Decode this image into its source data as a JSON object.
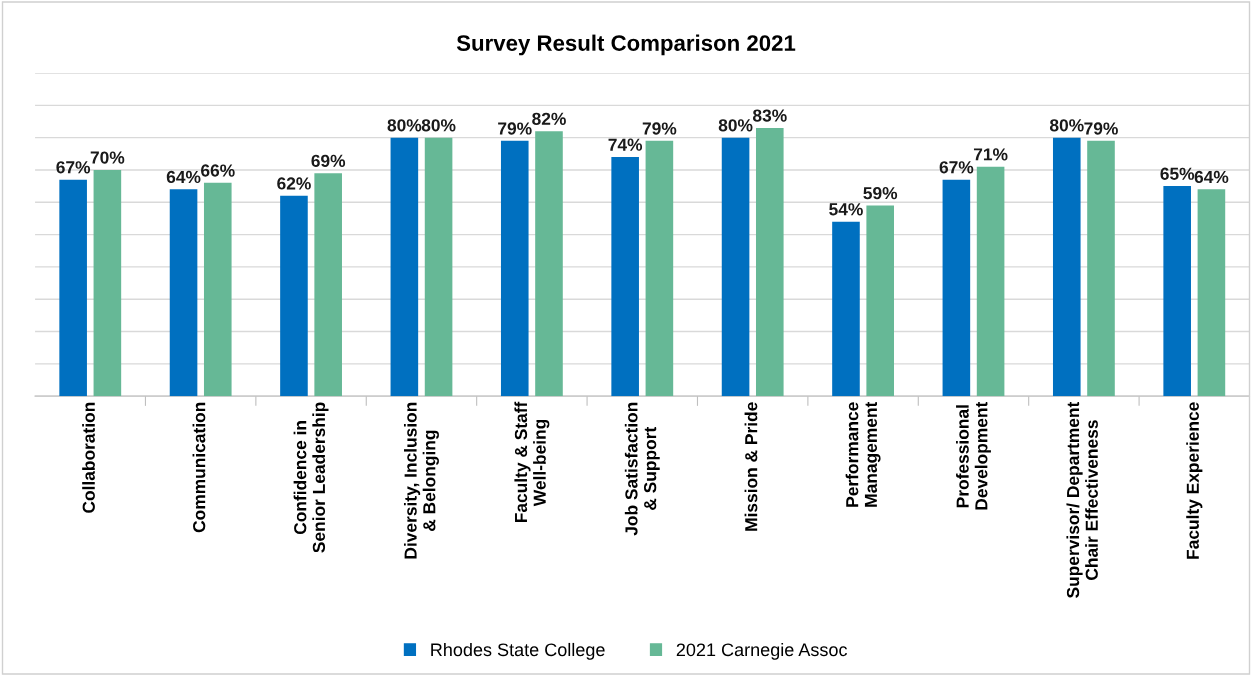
{
  "chart_data": {
    "type": "bar",
    "title": "Survey Result Comparison 2021",
    "categories": [
      "Collaboration",
      "Communication",
      "Confidence in\nSenior Leadership",
      "Diversity, Inclusion\n& Belonging",
      "Faculty & Staff\nWell-being",
      "Job Satisfaction\n& Support",
      "Mission & Pride",
      "Performance\nManagement",
      "Professional\nDevelopment",
      "Supervisor/ Department\nChair Effectiveness",
      "Faculty Experience"
    ],
    "series": [
      {
        "name": "Rhodes State College",
        "color": "#0070c0",
        "values": [
          67,
          64,
          62,
          80,
          79,
          74,
          80,
          54,
          67,
          80,
          65
        ],
        "value_labels": [
          "67%",
          "64%",
          "62%",
          "80%",
          "79%",
          "74%",
          "80%",
          "54%",
          "67%",
          "80%",
          "65%"
        ]
      },
      {
        "name": "2021 Carnegie Assoc",
        "color": "#66b896",
        "values": [
          70,
          66,
          69,
          80,
          82,
          79,
          83,
          59,
          71,
          79,
          64
        ],
        "value_labels": [
          "70%",
          "66%",
          "69%",
          "80%",
          "82%",
          "79%",
          "83%",
          "59%",
          "71%",
          "79%",
          "64%"
        ]
      }
    ],
    "ylim": [
      0,
      100
    ],
    "yticks": [
      {
        "value": 0,
        "label": null
      },
      {
        "value": 10,
        "label": null
      },
      {
        "value": 20,
        "label": null
      },
      {
        "value": 30,
        "label": null
      },
      {
        "value": 40,
        "label": null
      },
      {
        "value": 50,
        "label": null
      },
      {
        "value": 60,
        "label": null
      },
      {
        "value": 70,
        "label": null
      },
      {
        "value": 80,
        "label": null
      },
      {
        "value": 90,
        "label": null
      },
      {
        "value": 100,
        "label": null
      }
    ],
    "tick_labels": "x",
    "grid": "y",
    "legend": "bottom"
  }
}
